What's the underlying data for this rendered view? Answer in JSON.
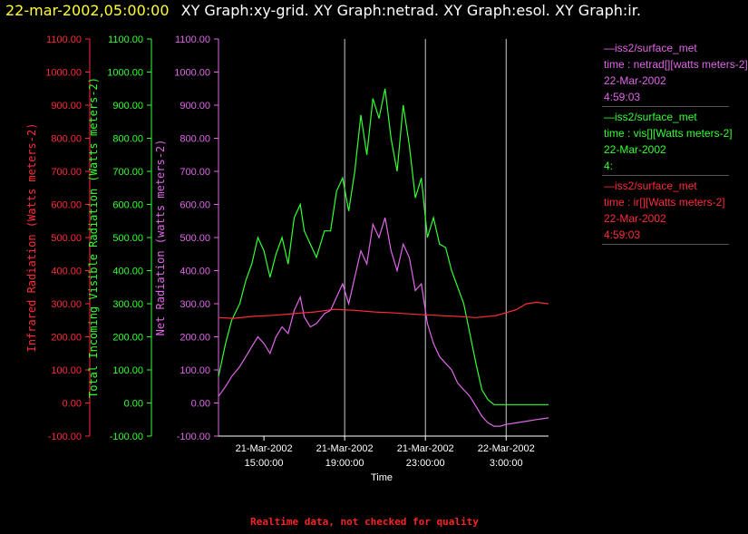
{
  "header": {
    "timestamp": "22-mar-2002,05:00:00",
    "graphs": "XY Graph:xy-grid.  XY Graph:netrad.  XY Graph:esol.  XY Graph:ir."
  },
  "legend": [
    {
      "line1": "—iss2/surface_met",
      "line2": "time : netrad[][watts meters-2]",
      "line3": "22-Mar-2002",
      "line4": "4:59:03",
      "color": "#e066e8"
    },
    {
      "line1": "—iss2/surface_met",
      "line2": "time : vis[][Watts meters-2]",
      "line3": "22-Mar-2002",
      "line4": "4:",
      "color": "#33ff33"
    },
    {
      "line1": "—iss2/surface_met",
      "line2": "time : ir[][Watts meters-2]",
      "line3": "22-Mar-2002",
      "line4": "4:59:03",
      "color": "#ff2a3a"
    }
  ],
  "footer": "Realtime data, not checked for quality",
  "chart_data": {
    "type": "line",
    "xlabel": "Time",
    "x_ticks": [
      {
        "date": "21-Mar-2002",
        "time": "15:00:00",
        "hours": 0
      },
      {
        "date": "21-Mar-2002",
        "time": "19:00:00",
        "hours": 4
      },
      {
        "date": "21-Mar-2002",
        "time": "23:00:00",
        "hours": 8
      },
      {
        "date": "22-Mar-2002",
        "time": "3:00:00",
        "hours": 12
      }
    ],
    "x_range_hours": [
      -2.25,
      14.1
    ],
    "gridlines_hours": [
      4,
      8,
      12
    ],
    "y_ticks": [
      "-100.00",
      "0.00",
      "100.00",
      "200.00",
      "300.00",
      "400.00",
      "500.00",
      "600.00",
      "700.00",
      "800.00",
      "900.00",
      "1000.00",
      "1100.00"
    ],
    "ylim": [
      -100,
      1100
    ],
    "axes": [
      {
        "label": "Infrared Radiation (Watts meters-2)",
        "color": "#ff2a3a"
      },
      {
        "label": "Total Incoming Visible Radiation (Watts meters-2)",
        "color": "#33ff33"
      },
      {
        "label": "Net Radiation (watts meters-2)",
        "color": "#e066e8"
      }
    ],
    "series": [
      {
        "name": "vis",
        "color": "#33ff33",
        "x_hours": [
          -2.25,
          -1.9,
          -1.6,
          -1.2,
          -0.9,
          -0.6,
          -0.3,
          0,
          0.3,
          0.6,
          0.9,
          1.2,
          1.5,
          1.8,
          2.0,
          2.3,
          2.6,
          3.0,
          3.3,
          3.6,
          3.9,
          4.2,
          4.5,
          4.8,
          5.1,
          5.4,
          5.7,
          6.0,
          6.3,
          6.6,
          6.9,
          7.2,
          7.5,
          7.8,
          8.1,
          8.4,
          8.7,
          9.0,
          9.3,
          9.6,
          9.9,
          10.2,
          10.5,
          10.8,
          11.1,
          11.4,
          11.7,
          12.0,
          12.5,
          13.0,
          13.5,
          14.1
        ],
        "values": [
          80,
          180,
          250,
          300,
          370,
          420,
          500,
          460,
          380,
          450,
          500,
          420,
          560,
          600,
          520,
          480,
          440,
          520,
          520,
          640,
          680,
          580,
          700,
          870,
          750,
          920,
          860,
          950,
          800,
          700,
          900,
          780,
          620,
          680,
          500,
          560,
          480,
          470,
          400,
          350,
          300,
          210,
          120,
          40,
          10,
          -5,
          -5,
          -5,
          -5,
          -5,
          -5,
          -5
        ]
      },
      {
        "name": "netrad",
        "color": "#e066e8",
        "x_hours": [
          -2.25,
          -1.9,
          -1.6,
          -1.2,
          -0.9,
          -0.6,
          -0.3,
          0,
          0.3,
          0.6,
          0.9,
          1.2,
          1.5,
          1.8,
          2.0,
          2.3,
          2.6,
          3.0,
          3.3,
          3.6,
          3.9,
          4.2,
          4.5,
          4.8,
          5.1,
          5.4,
          5.7,
          6.0,
          6.3,
          6.6,
          6.9,
          7.2,
          7.5,
          7.8,
          8.1,
          8.4,
          8.7,
          9.0,
          9.3,
          9.6,
          9.9,
          10.2,
          10.5,
          10.8,
          11.1,
          11.4,
          11.7,
          12.0,
          12.5,
          13.0,
          13.5,
          14.1
        ],
        "values": [
          20,
          50,
          80,
          110,
          140,
          170,
          200,
          180,
          150,
          200,
          230,
          210,
          280,
          320,
          260,
          230,
          240,
          270,
          280,
          320,
          360,
          300,
          380,
          460,
          420,
          540,
          500,
          560,
          460,
          400,
          480,
          440,
          340,
          360,
          240,
          180,
          140,
          120,
          100,
          60,
          40,
          20,
          -10,
          -40,
          -60,
          -70,
          -70,
          -65,
          -60,
          -55,
          -50,
          -45
        ]
      },
      {
        "name": "ir",
        "color": "#ff2a3a",
        "x_hours": [
          -2.25,
          -1.5,
          -0.5,
          0.5,
          1.5,
          2.5,
          3.5,
          4.5,
          5.5,
          6.5,
          7.5,
          8.5,
          9.5,
          10.5,
          11.5,
          12.5,
          13.0,
          13.5,
          14.1
        ],
        "values": [
          258,
          256,
          262,
          265,
          270,
          275,
          283,
          280,
          275,
          272,
          268,
          265,
          262,
          258,
          264,
          282,
          300,
          304,
          300
        ]
      }
    ]
  }
}
